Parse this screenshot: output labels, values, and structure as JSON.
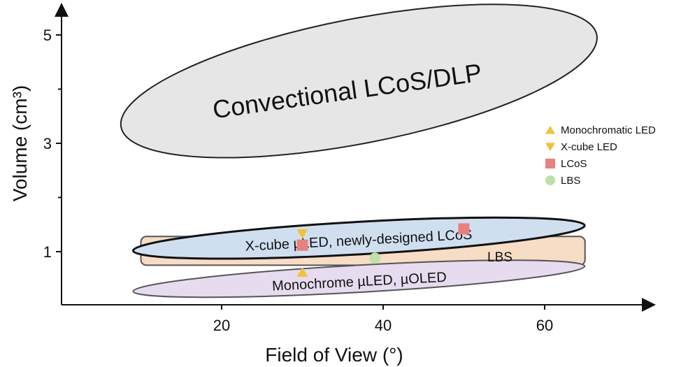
{
  "chart_data": {
    "type": "scatter",
    "xlabel": "Field of View (°)",
    "ylabel": "Volume (cm³)",
    "x_ticks": [
      "20",
      "40",
      "60"
    ],
    "y_ticks": [
      "1",
      "3",
      "5"
    ],
    "xlim": [
      0,
      73
    ],
    "ylim": [
      0.2,
      5.5
    ],
    "regions": [
      {
        "label": "Convectional LCoS/DLP",
        "fill": "#e6e6e6",
        "shape": "ellipse",
        "x_range": [
          7,
          67
        ],
        "y_range": [
          3.0,
          5.3
        ]
      },
      {
        "label": "LBS",
        "fill": "#f7dcc6",
        "shape": "rounded-rect",
        "x_range": [
          10,
          65
        ],
        "y_range": [
          0.75,
          1.28
        ]
      },
      {
        "label": "X-cube µLED, newly-designed LCoS",
        "fill": "#cfdff0",
        "shape": "ellipse",
        "x_range": [
          9,
          65
        ],
        "y_range": [
          0.95,
          1.55
        ]
      },
      {
        "label": "Monochrome µLED, µOLED",
        "fill": "#e6dbef",
        "shape": "ellipse",
        "x_range": [
          9,
          65
        ],
        "y_range": [
          0.25,
          0.75
        ]
      }
    ],
    "series": [
      {
        "name": "Monochromatic LED",
        "marker": "triangle-up",
        "color": "#f2c23a",
        "points": [
          [
            30,
            0.62
          ]
        ]
      },
      {
        "name": "X-cube LED",
        "marker": "triangle-down",
        "color": "#f2c23a",
        "points": [
          [
            30,
            1.33
          ]
        ]
      },
      {
        "name": "LCoS",
        "marker": "square",
        "color": "#e88080",
        "points": [
          [
            30,
            1.12
          ],
          [
            50,
            1.42
          ]
        ]
      },
      {
        "name": "LBS",
        "marker": "circle",
        "color": "#bfe0a8",
        "points": [
          [
            39,
            0.88
          ]
        ]
      }
    ],
    "legend_position": "right"
  }
}
